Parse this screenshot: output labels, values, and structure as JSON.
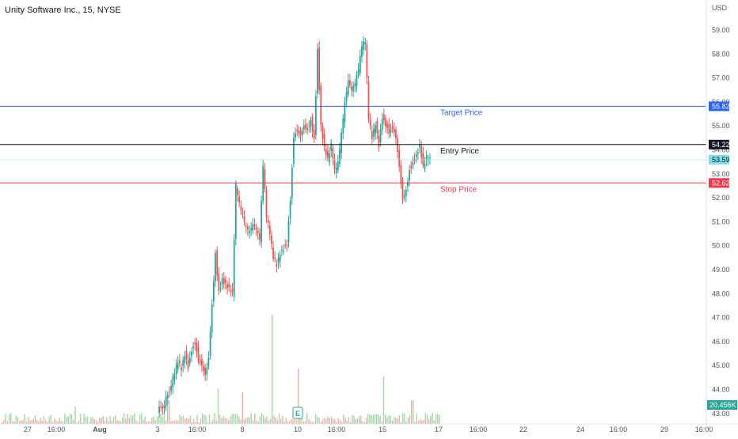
{
  "header": {
    "symbol_title": "Unity Software Inc., 15, NYSE"
  },
  "price_axis": {
    "currency": "USD",
    "tick_labels": [
      "59.00",
      "58.00",
      "57.00",
      "56.00",
      "55.00",
      "54.00",
      "53.00",
      "52.00",
      "51.00",
      "50.00",
      "49.00",
      "48.00",
      "47.00",
      "46.00",
      "45.00",
      "44.00",
      "43.00"
    ]
  },
  "time_axis": {
    "labels": [
      {
        "text": "27",
        "bold": false
      },
      {
        "text": "16:00",
        "bold": false
      },
      {
        "text": "Aug",
        "bold": true
      },
      {
        "text": "3",
        "bold": false
      },
      {
        "text": "16:00",
        "bold": false
      },
      {
        "text": "8",
        "bold": false
      },
      {
        "text": "10",
        "bold": false
      },
      {
        "text": "16:00",
        "bold": false
      },
      {
        "text": "15",
        "bold": false
      },
      {
        "text": "17",
        "bold": false
      },
      {
        "text": "16:00",
        "bold": false
      },
      {
        "text": "22",
        "bold": false
      },
      {
        "text": "24",
        "bold": false
      },
      {
        "text": "16:00",
        "bold": false
      },
      {
        "text": "29",
        "bold": false
      },
      {
        "text": "16:00",
        "bold": false
      }
    ]
  },
  "earnings_marker": {
    "label": "E"
  },
  "price_levels": [
    {
      "name": "Target Price",
      "value": 55.82,
      "tag": "55.82",
      "color": "#2962ff",
      "tag_color": "#2962ff"
    },
    {
      "name": "Entry Price",
      "value": 54.22,
      "tag": "54.22",
      "color": "#131722",
      "tag_color": "#131722"
    },
    {
      "name": "Stop Price",
      "value": 52.62,
      "tag": "52.62",
      "color": "#f23645",
      "tag_color": "#f23645"
    }
  ],
  "last_price": {
    "value": 53.59,
    "tag": "53.59",
    "color": "#80deea"
  },
  "volume_tag": {
    "tag": "20.456K",
    "color": "#26a69a"
  },
  "colors": {
    "up": "#26a69a",
    "down": "#ef5350",
    "up_volume": "#a5d6a7",
    "down_volume": "#f7a9a7"
  },
  "chart_data": {
    "type": "line",
    "title": "Unity Software Inc., 15, NYSE",
    "ylim": [
      42.8,
      59.6
    ],
    "grid": false,
    "x_labels": [
      "27",
      "16:00",
      "Aug",
      "3",
      "16:00",
      "8",
      "10",
      "16:00",
      "15",
      "17",
      "16:00",
      "22",
      "24",
      "16:00",
      "29",
      "16:00"
    ],
    "series": [
      {
        "points": [
          [
            0,
            43.1
          ],
          [
            2,
            43.4
          ],
          [
            4,
            44.2
          ],
          [
            5,
            44.7
          ],
          [
            6,
            45.2
          ],
          [
            7,
            44.9
          ],
          [
            8,
            45.5
          ],
          [
            9,
            45.0
          ],
          [
            10,
            45.7
          ],
          [
            11,
            46.0
          ],
          [
            12,
            45.3
          ],
          [
            13,
            45.1
          ],
          [
            14,
            44.7
          ],
          [
            15,
            45.4
          ],
          [
            16,
            47.6
          ],
          [
            17,
            49.7
          ],
          [
            18,
            48.1
          ],
          [
            19,
            48.6
          ],
          [
            20,
            48.4
          ],
          [
            21,
            48.2
          ],
          [
            22,
            48.0
          ],
          [
            23,
            52.5
          ],
          [
            24,
            51.7
          ],
          [
            25,
            51.2
          ],
          [
            26,
            50.7
          ],
          [
            27,
            50.5
          ],
          [
            28,
            50.8
          ],
          [
            29,
            50.6
          ],
          [
            30,
            50.2
          ],
          [
            31,
            53.3
          ],
          [
            32,
            51.2
          ],
          [
            33,
            50.5
          ],
          [
            34,
            49.5
          ],
          [
            35,
            49.2
          ],
          [
            36,
            49.7
          ],
          [
            37,
            49.9
          ],
          [
            38,
            50.1
          ],
          [
            39,
            52.0
          ],
          [
            40,
            54.6
          ],
          [
            41,
            54.9
          ],
          [
            42,
            54.7
          ],
          [
            43,
            55.1
          ],
          [
            44,
            54.9
          ],
          [
            45,
            55.3
          ],
          [
            46,
            54.5
          ],
          [
            47,
            58.2
          ],
          [
            48,
            55.0
          ],
          [
            49,
            54.1
          ],
          [
            50,
            53.6
          ],
          [
            51,
            54.2
          ],
          [
            52,
            53.1
          ],
          [
            53,
            53.4
          ],
          [
            54,
            54.6
          ],
          [
            55,
            55.9
          ],
          [
            56,
            56.8
          ],
          [
            57,
            56.4
          ],
          [
            58,
            56.7
          ],
          [
            59,
            57.3
          ],
          [
            60,
            58.3
          ],
          [
            61,
            58.5
          ],
          [
            62,
            55.3
          ],
          [
            63,
            54.5
          ],
          [
            64,
            55.1
          ],
          [
            65,
            54.2
          ],
          [
            66,
            55.4
          ],
          [
            67,
            55.1
          ],
          [
            68,
            54.8
          ],
          [
            69,
            55.0
          ],
          [
            70,
            54.6
          ],
          [
            71,
            53.4
          ],
          [
            72,
            52.0
          ],
          [
            73,
            52.4
          ],
          [
            74,
            53.2
          ],
          [
            75,
            53.5
          ],
          [
            76,
            53.8
          ],
          [
            77,
            54.2
          ],
          [
            78,
            53.3
          ],
          [
            79,
            53.7
          ],
          [
            80,
            53.59
          ]
        ]
      }
    ]
  }
}
